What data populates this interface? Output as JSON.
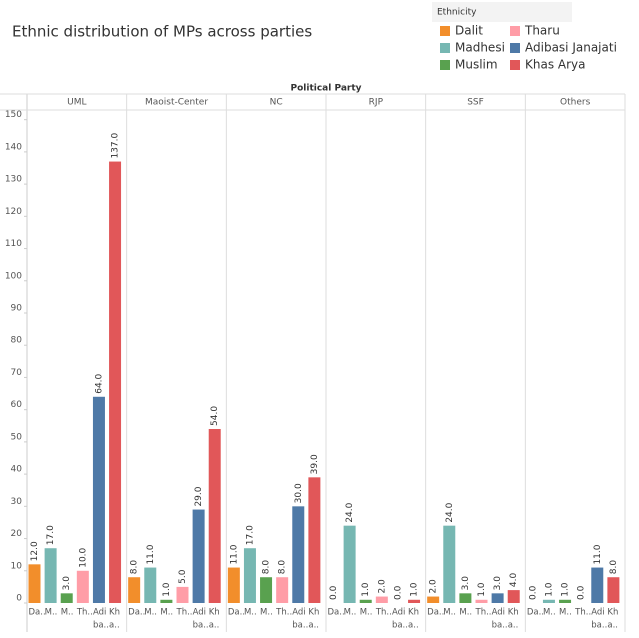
{
  "chart_data": {
    "type": "faceted-bar",
    "title": "Ethnic distribution of MPs across parties",
    "facet_title": "Political Party",
    "legend_title": "Ethnicity",
    "categories": [
      "UML",
      "Maoist-Center",
      "NC",
      "RJP",
      "SSF",
      "Others"
    ],
    "bar_labels": [
      [
        "Da.."
      ],
      [
        "M.."
      ],
      [
        "M.."
      ],
      [
        "Th.."
      ],
      [
        "Adi",
        "ba.."
      ],
      [
        "Kh",
        "a.."
      ]
    ],
    "series": [
      {
        "name": "Dalit",
        "color": "#f28e2b",
        "values": [
          12,
          8,
          11,
          0,
          2,
          0
        ],
        "value_labels": [
          "12.0",
          "8.0",
          "11.0",
          "0.0",
          "2.0",
          "0.0"
        ]
      },
      {
        "name": "Madhesi",
        "color": "#76b7b2",
        "values": [
          17,
          11,
          17,
          24,
          24,
          1
        ],
        "value_labels": [
          "17.0",
          "11.0",
          "17.0",
          "24.0",
          "24.0",
          "1.0"
        ]
      },
      {
        "name": "Muslim",
        "color": "#59a14f",
        "values": [
          3,
          1,
          8,
          1,
          3,
          1
        ],
        "value_labels": [
          "3.0",
          "1.0",
          "8.0",
          "1.0",
          "3.0",
          "1.0"
        ]
      },
      {
        "name": "Tharu",
        "color": "#ff9da7",
        "values": [
          10,
          5,
          8,
          2,
          1,
          0
        ],
        "value_labels": [
          "10.0",
          "5.0",
          "8.0",
          "2.0",
          "1.0",
          "0.0"
        ]
      },
      {
        "name": "Adibasi Janajati",
        "color": "#4e79a7",
        "values": [
          64,
          29,
          30,
          0,
          3,
          11
        ],
        "value_labels": [
          "64.0",
          "29.0",
          "30.0",
          "0.0",
          "3.0",
          "11.0"
        ]
      },
      {
        "name": "Khas Arya",
        "color": "#e15759",
        "values": [
          137,
          54,
          39,
          1,
          4,
          8
        ],
        "value_labels": [
          "137.0",
          "54.0",
          "39.0",
          "1.0",
          "4.0",
          "8.0"
        ]
      }
    ],
    "ylim": [
      0,
      153
    ],
    "yticks": [
      0,
      10,
      20,
      30,
      40,
      50,
      60,
      70,
      80,
      90,
      100,
      110,
      120,
      130,
      140,
      150
    ],
    "grid": false
  }
}
